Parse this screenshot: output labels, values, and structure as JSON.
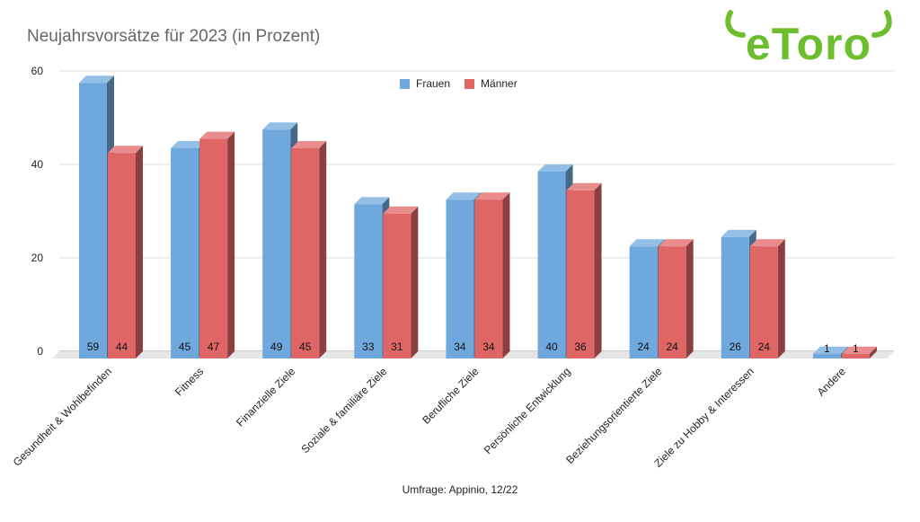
{
  "title": "Neujahrsvorsätze für 2023 (in Prozent)",
  "footnote": "Umfrage: Appinio, 12/22",
  "logo": {
    "text": "eToro",
    "color": "#6cbe2f"
  },
  "colors": {
    "frauen": "#6fa8dc",
    "maenner": "#e06666"
  },
  "chart_data": {
    "type": "bar",
    "title": "Neujahrsvorsätze für 2023 (in Prozent)",
    "xlabel": "",
    "ylabel": "",
    "ylim": [
      0,
      60
    ],
    "yticks": [
      "0",
      "20",
      "40",
      "60"
    ],
    "grid": true,
    "legend_position": "top-center",
    "categories": [
      "Gesundheit & Wohlbefinden",
      "Fitness",
      "Finanzielle Ziele",
      "Soziale & familiäre Ziele",
      "Berufliche Ziele",
      "Persönliche Entwicklung",
      "Beziehungsorientierte Ziele",
      "Ziele zu Hobby & Interessen",
      "Andere"
    ],
    "series": [
      {
        "name": "Frauen",
        "values": [
          59,
          45,
          49,
          33,
          34,
          40,
          24,
          26,
          1
        ]
      },
      {
        "name": "Männer",
        "values": [
          44,
          47,
          45,
          31,
          34,
          36,
          24,
          24,
          1
        ]
      }
    ]
  }
}
